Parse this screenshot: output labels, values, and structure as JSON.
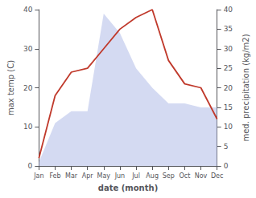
{
  "chart_data": {
    "type": "line",
    "categories": [
      "Jan",
      "Feb",
      "Mar",
      "Apr",
      "May",
      "Jun",
      "Jul",
      "Aug",
      "Sep",
      "Oct",
      "Nov",
      "Dec"
    ],
    "series": [
      {
        "type": "area",
        "color": "#b0bce8",
        "axis": "y2",
        "values": [
          1,
          11,
          14,
          14,
          39,
          34,
          25,
          20,
          16,
          16,
          15,
          15
        ]
      },
      {
        "type": "line",
        "color": "#c0392b",
        "values": [
          2,
          18,
          24,
          25,
          30,
          35,
          38,
          40,
          27,
          21,
          20,
          12
        ]
      }
    ],
    "x_label": "date (month)",
    "y_label": "max temp (C)",
    "y2_label": "med. precipitation (kg/m2)",
    "ylim": [
      0,
      40
    ],
    "yticks": [
      0,
      10,
      20,
      30,
      40
    ],
    "y2lim": [
      0,
      40
    ],
    "y2ticks": [
      0,
      5,
      10,
      15,
      20,
      25,
      30,
      35,
      40
    ],
    "grid": false
  }
}
